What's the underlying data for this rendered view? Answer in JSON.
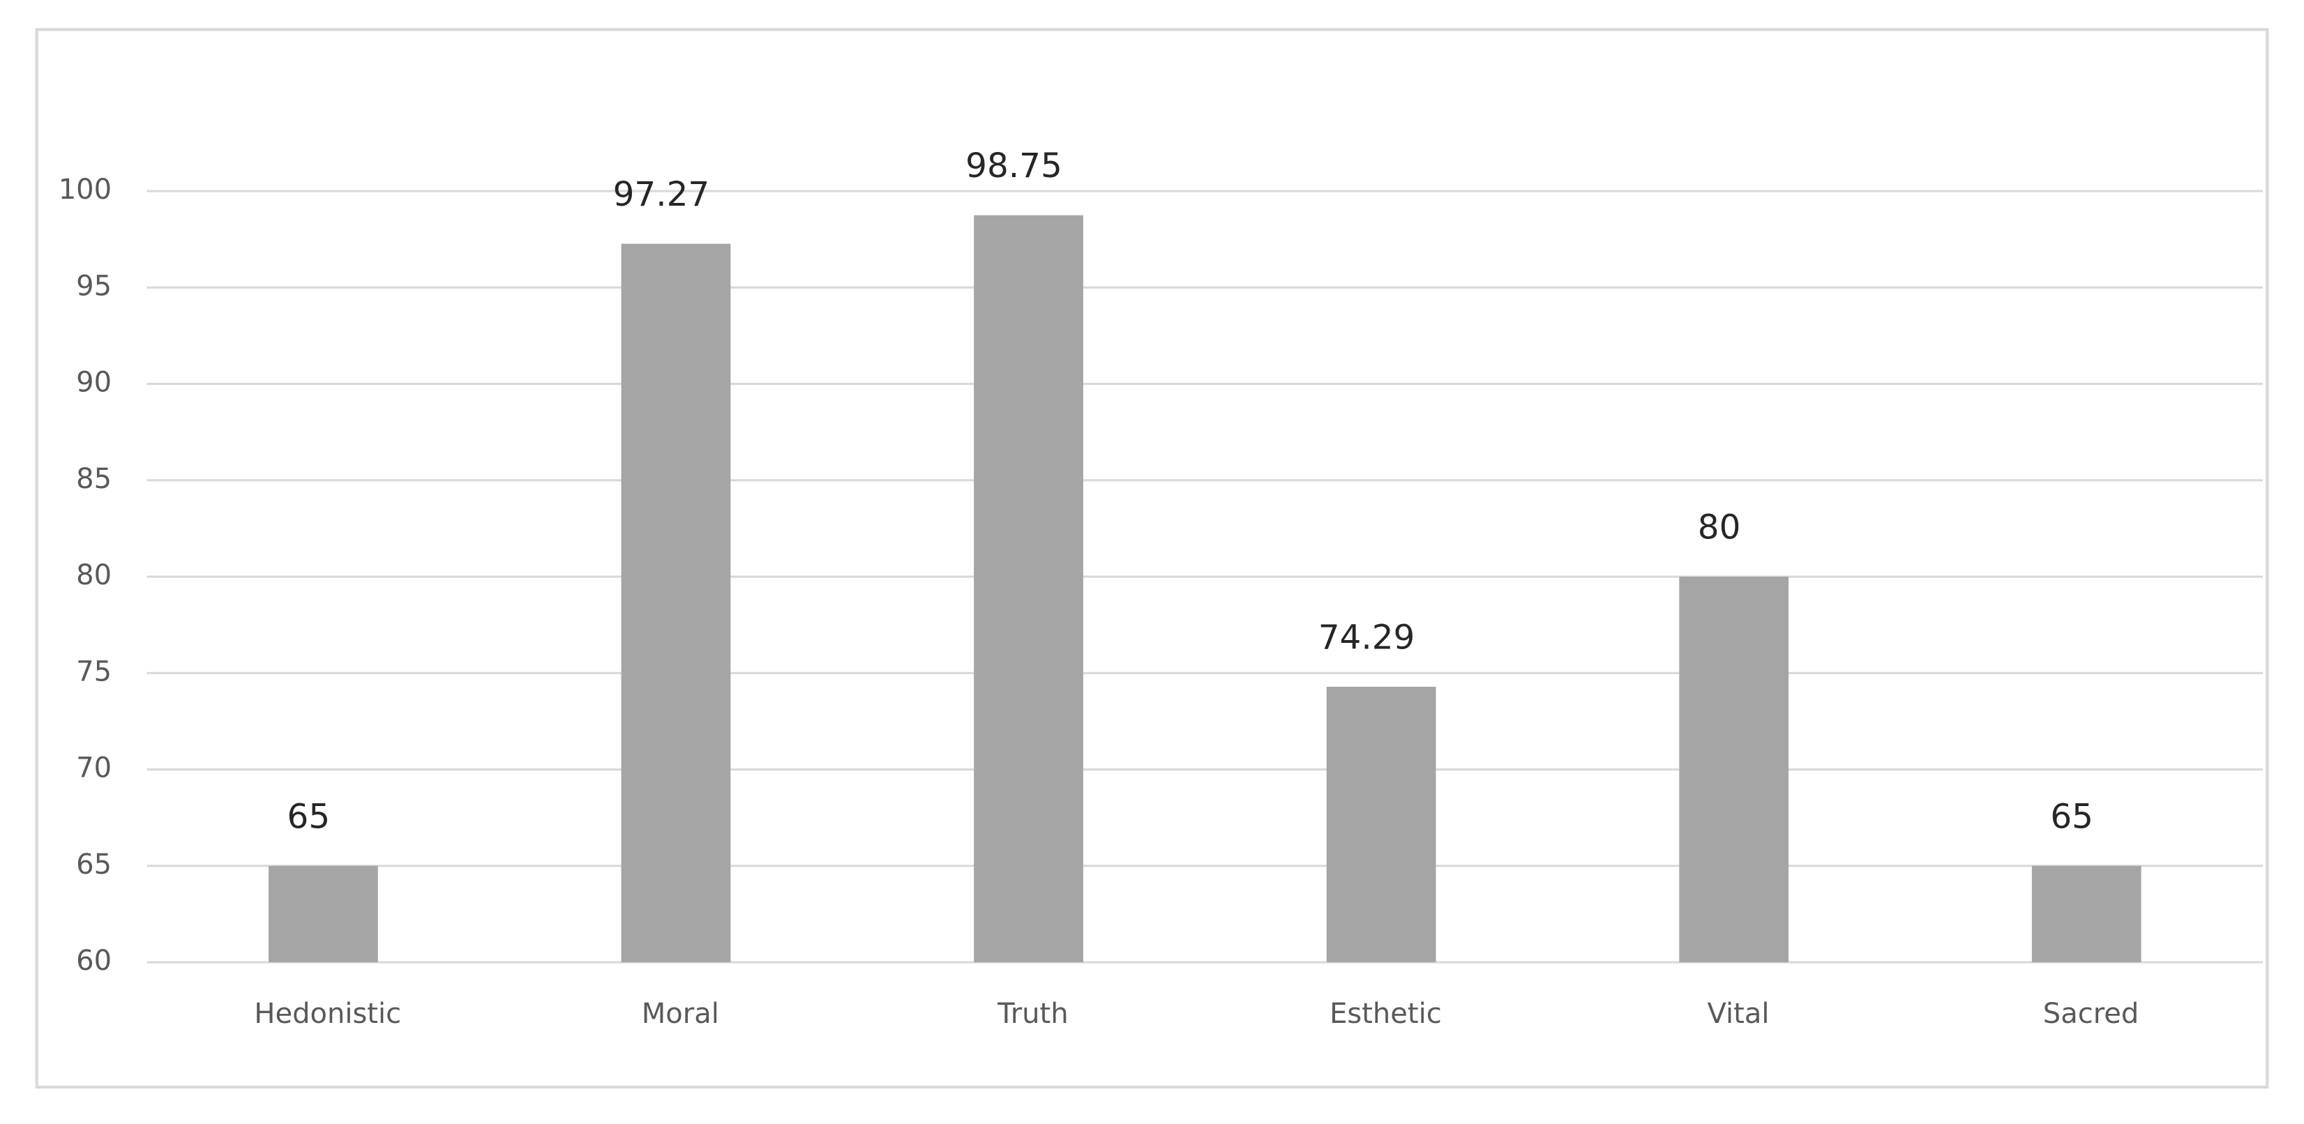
{
  "chart_data": {
    "type": "bar",
    "categories": [
      "Hedonistic",
      "Moral",
      "Truth",
      "Esthetic",
      "Vital",
      "Sacred"
    ],
    "values": [
      65,
      97.27,
      98.75,
      74.29,
      80,
      65
    ],
    "color": "#a5a5a5",
    "ylim": [
      60,
      100
    ],
    "yticks": [
      60,
      65,
      70,
      75,
      80,
      85,
      90,
      95,
      100
    ],
    "grid": true
  }
}
